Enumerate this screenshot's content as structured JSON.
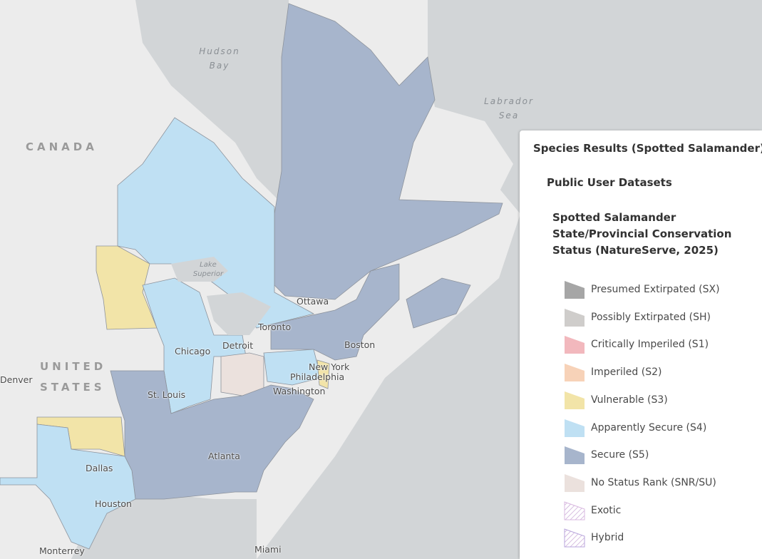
{
  "map": {
    "labels": {
      "hudson_bay": "Hudson Bay",
      "labrador_sea": "Labrador Sea",
      "canada": "CANADA",
      "united_states": "UNITED STATES",
      "lake_superior": "Lake Superior",
      "denver": "Denver",
      "ottawa": "Ottawa",
      "toronto": "Toronto",
      "chicago": "Chicago",
      "detroit": "Detroit",
      "boston": "Boston",
      "new_york": "New York",
      "philadelphia": "Philadelphia",
      "washington": "Washington",
      "st_louis": "St. Louis",
      "atlanta": "Atlanta",
      "dallas": "Dallas",
      "houston": "Houston",
      "monterrey": "Monterrey",
      "miami": "Miami"
    }
  },
  "legend": {
    "title": "Species Results (Spotted Salamander)",
    "group": "Public User Datasets",
    "layer": "Spotted Salamander State/Provincial Conservation Status (NatureServe, 2025)",
    "items": [
      {
        "label": "Presumed Extirpated (SX)",
        "color": "#a6a6a6"
      },
      {
        "label": "Possibly Extirpated (SH)",
        "color": "#cfcdcb"
      },
      {
        "label": "Critically Imperiled (S1)",
        "color": "#f2b8bd"
      },
      {
        "label": "Imperiled (S2)",
        "color": "#f7d2b8"
      },
      {
        "label": "Vulnerable (S3)",
        "color": "#f2e4a8"
      },
      {
        "label": "Apparently Secure (S4)",
        "color": "#bfe0f3"
      },
      {
        "label": "Secure (S5)",
        "color": "#a7b5cc"
      },
      {
        "label": "No Status Rank (SNR/SU)",
        "color": "#ebe1dd"
      },
      {
        "label": "Exotic",
        "color": "#d9b8e0",
        "hatch": true
      },
      {
        "label": "Hybrid",
        "color": "#b8a6dc",
        "hatch": true
      }
    ]
  }
}
